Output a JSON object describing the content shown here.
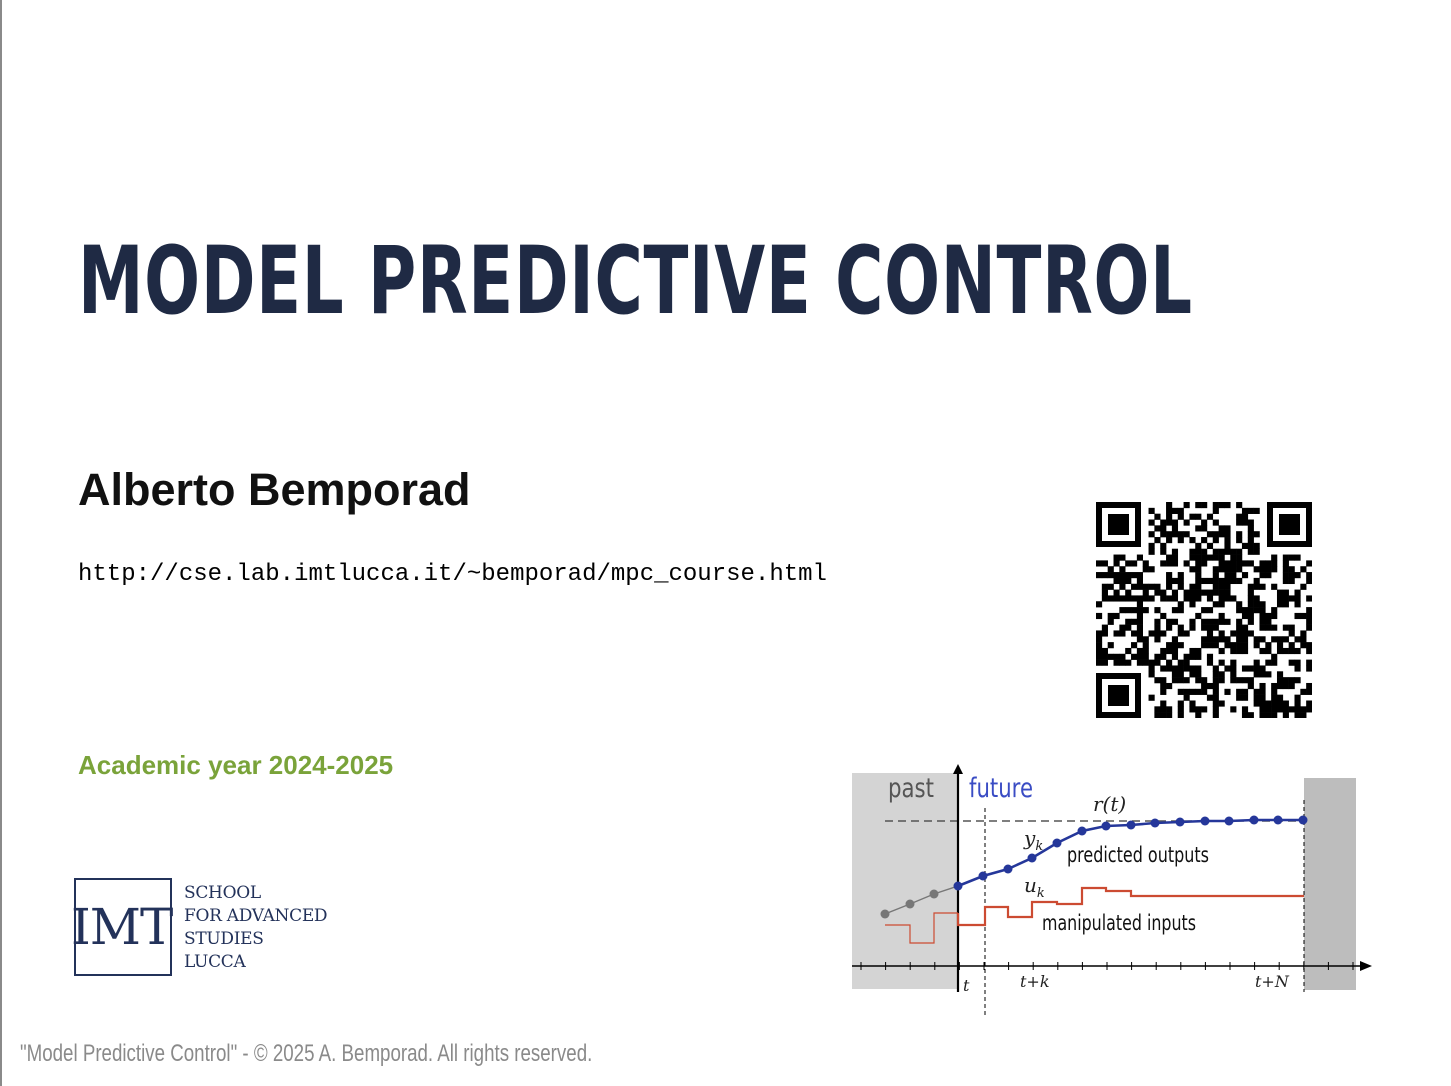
{
  "slide": {
    "title": "MODEL PREDICTIVE CONTROL",
    "author": "Alberto Bemporad",
    "url": "http://cse.lab.imtlucca.it/~bemporad/mpc_course.html",
    "academic_year": "Academic year 2024-2025",
    "footer": "\"Model Predictive Control\" - © 2025 A. Bemporad. All rights reserved.",
    "colors": {
      "title": "#1f2a44",
      "year": "#7aa33a",
      "footer": "#8a8a8a"
    }
  },
  "logo": {
    "mark": "IMT",
    "lines": [
      "SCHOOL",
      "FOR ADVANCED",
      "STUDIES",
      "LUCCA"
    ],
    "color": "#23325a"
  },
  "qr_code": {
    "icon": "qr-code-icon"
  },
  "diagram": {
    "label_past": "past",
    "label_future": "future",
    "label_reference": "r(t)",
    "label_y": "y",
    "label_y_sub": "k",
    "label_u": "u",
    "label_u_sub": "k",
    "label_outputs": "predicted outputs",
    "label_inputs": "manipulated inputs",
    "tick_t": "t",
    "tick_tk": "t+k",
    "tick_tN": "t+N",
    "colors": {
      "future": "#3a4cc4",
      "outputs": "#25379a",
      "past_points": "#777777",
      "inputs": "#cc4b32",
      "shade": "#d4d4d4"
    }
  }
}
